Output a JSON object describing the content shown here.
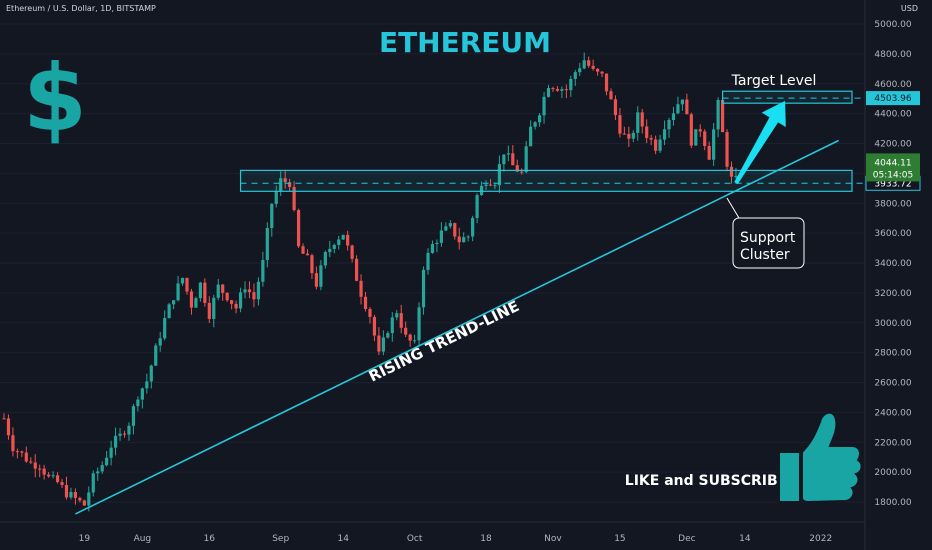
{
  "header": {
    "symbol_text": "Ethereum / U.S. Dollar, 1D, BITSTAMP",
    "currency": "USD"
  },
  "chart_data": {
    "type": "candlestick",
    "title": "ETHEREUM",
    "y_ticks": [
      1800,
      2000,
      2200,
      2400,
      2600,
      2800,
      3000,
      3200,
      3400,
      3600,
      3800,
      4000,
      4200,
      4400,
      4600,
      4800,
      5000
    ],
    "y_tick_labels": [
      "1800.00",
      "2000.00",
      "2200.00",
      "2400.00",
      "2600.00",
      "2800.00",
      "3000.00",
      "3200.00",
      "3400.00",
      "3600.00",
      "3800.00",
      "4000.00",
      "4200.00",
      "4400.00",
      "4600.00",
      "4800.00",
      "5000.00"
    ],
    "ylim": [
      1720,
      5080
    ],
    "x_tick_labels": [
      "19",
      "Aug",
      "16",
      "Sep",
      "14",
      "Oct",
      "18",
      "Nov",
      "15",
      "Dec",
      "14",
      "2022"
    ],
    "x_tick_days": [
      18,
      31,
      46,
      62,
      76,
      92,
      108,
      123,
      138,
      153,
      166,
      183
    ],
    "x_day_range": [
      0,
      190
    ],
    "anchors_comment_free": true,
    "anchors": [
      [
        0,
        2360
      ],
      [
        2,
        2170
      ],
      [
        4,
        2120
      ],
      [
        6,
        2060
      ],
      [
        8,
        2050
      ],
      [
        10,
        1960
      ],
      [
        12,
        1930
      ],
      [
        14,
        1860
      ],
      [
        16,
        1820
      ],
      [
        18,
        1780
      ],
      [
        20,
        1960
      ],
      [
        22,
        2050
      ],
      [
        24,
        2180
      ],
      [
        26,
        2240
      ],
      [
        28,
        2330
      ],
      [
        30,
        2520
      ],
      [
        32,
        2610
      ],
      [
        34,
        2820
      ],
      [
        36,
        3020
      ],
      [
        38,
        3180
      ],
      [
        40,
        3300
      ],
      [
        42,
        3120
      ],
      [
        44,
        3260
      ],
      [
        46,
        3060
      ],
      [
        48,
        3240
      ],
      [
        50,
        3180
      ],
      [
        52,
        3100
      ],
      [
        54,
        3250
      ],
      [
        56,
        3160
      ],
      [
        58,
        3400
      ],
      [
        60,
        3800
      ],
      [
        62,
        3950
      ],
      [
        64,
        3940
      ],
      [
        66,
        3500
      ],
      [
        68,
        3420
      ],
      [
        70,
        3260
      ],
      [
        72,
        3450
      ],
      [
        74,
        3550
      ],
      [
        76,
        3600
      ],
      [
        78,
        3400
      ],
      [
        80,
        3200
      ],
      [
        82,
        3050
      ],
      [
        84,
        2780
      ],
      [
        86,
        2960
      ],
      [
        88,
        3080
      ],
      [
        90,
        2900
      ],
      [
        92,
        2850
      ],
      [
        94,
        3380
      ],
      [
        96,
        3520
      ],
      [
        98,
        3600
      ],
      [
        100,
        3640
      ],
      [
        102,
        3550
      ],
      [
        104,
        3580
      ],
      [
        106,
        3850
      ],
      [
        108,
        3960
      ],
      [
        110,
        3950
      ],
      [
        112,
        4150
      ],
      [
        114,
        4050
      ],
      [
        116,
        4000
      ],
      [
        118,
        4300
      ],
      [
        120,
        4420
      ],
      [
        122,
        4600
      ],
      [
        124,
        4580
      ],
      [
        126,
        4560
      ],
      [
        128,
        4680
      ],
      [
        130,
        4760
      ],
      [
        132,
        4680
      ],
      [
        134,
        4650
      ],
      [
        136,
        4480
      ],
      [
        138,
        4300
      ],
      [
        140,
        4200
      ],
      [
        142,
        4380
      ],
      [
        144,
        4260
      ],
      [
        146,
        4180
      ],
      [
        148,
        4330
      ],
      [
        150,
        4420
      ],
      [
        152,
        4520
      ],
      [
        154,
        4220
      ],
      [
        156,
        4300
      ],
      [
        158,
        4120
      ],
      [
        160,
        4460
      ],
      [
        162,
        4070
      ],
      [
        163,
        3960
      ],
      [
        164,
        3950
      ]
    ],
    "trend_line": {
      "label": "RISING TREND-LINE",
      "from": [
        16,
        1720
      ],
      "to": [
        187,
        4220
      ]
    },
    "support_zone": {
      "y_range": [
        3880,
        4020
      ],
      "x_range": [
        53,
        190
      ],
      "dashed_level": 3933.72
    },
    "target_zone": {
      "label": "Target Level",
      "y_range": [
        4470,
        4550
      ],
      "x_range": [
        161,
        190
      ],
      "dashed_level": 4503.96
    },
    "arrow": {
      "from": [
        164,
        3935
      ],
      "to": [
        175,
        4485
      ]
    },
    "price_tags": [
      {
        "value": "4503.96",
        "color": "#26c6da",
        "text_color": "#131722"
      },
      {
        "value": "3933.72",
        "color": "#131722",
        "text_color": "#ffffff",
        "border": "#26c6da"
      }
    ],
    "current_price": {
      "value": "4044.11",
      "countdown": "05:14:05",
      "color": "#2e7d32"
    },
    "annotation": {
      "label_line1": "Support",
      "label_line2": "Cluster"
    }
  },
  "overlays": {
    "dollar_symbol": "$",
    "thumbs_caption": "LIKE and SUBSCRIBE"
  },
  "colors": {
    "background": "#131722",
    "bull": "#26a69a",
    "bear": "#ef5350",
    "accent": "#26c6da",
    "text": "#b2b5be"
  }
}
